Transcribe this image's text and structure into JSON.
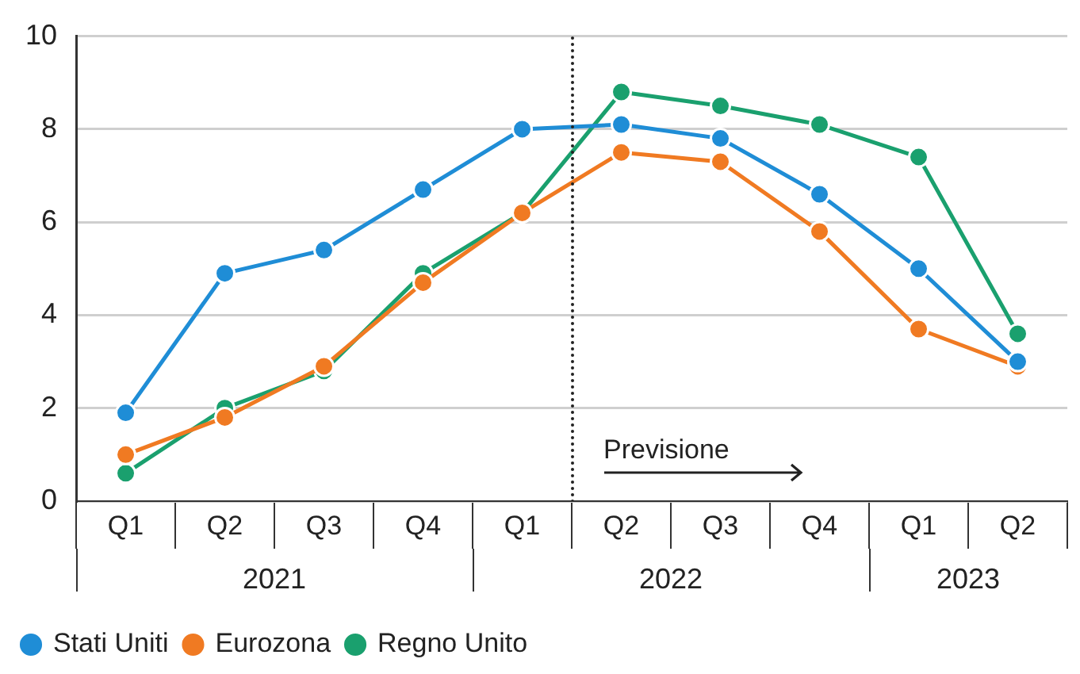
{
  "chart_data": {
    "type": "line",
    "categories": [
      "Q1",
      "Q2",
      "Q3",
      "Q4",
      "Q1",
      "Q2",
      "Q3",
      "Q4",
      "Q1",
      "Q2"
    ],
    "series": [
      {
        "name": "Stati Uniti",
        "color": "#1f8dd6",
        "values": [
          1.9,
          4.9,
          5.4,
          6.7,
          8.0,
          8.1,
          7.8,
          6.6,
          5.0,
          3.0
        ]
      },
      {
        "name": "Eurozona",
        "color": "#f07a22",
        "values": [
          1.0,
          1.8,
          2.9,
          4.7,
          6.2,
          7.5,
          7.3,
          5.8,
          3.7,
          2.9
        ]
      },
      {
        "name": "Regno Unito",
        "color": "#1aa06e",
        "values": [
          0.6,
          2.0,
          2.8,
          4.9,
          6.2,
          8.8,
          8.5,
          8.1,
          7.4,
          3.6
        ]
      }
    ],
    "annotations": [
      "Previsione",
      "2021",
      "2022",
      "2023"
    ],
    "ylim": [
      0,
      10
    ],
    "yticks": [
      0,
      2,
      4,
      6,
      8,
      10
    ],
    "grid": "y",
    "legend": "bottom left",
    "marker": "circle",
    "line_style": "solid"
  }
}
